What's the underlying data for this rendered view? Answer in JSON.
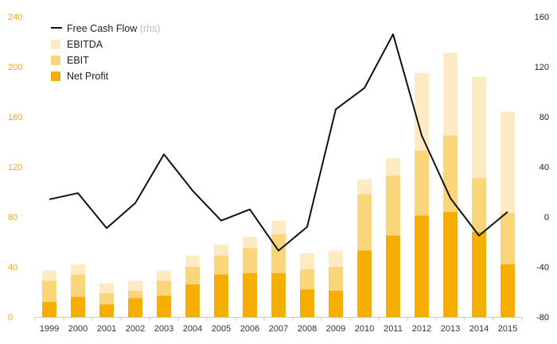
{
  "chart_data": {
    "type": "bar",
    "categories": [
      "1999",
      "2000",
      "2001",
      "2002",
      "2003",
      "2004",
      "2005",
      "2006",
      "2007",
      "2008",
      "2009",
      "2010",
      "2011",
      "2012",
      "2013",
      "2014",
      "2015"
    ],
    "series": [
      {
        "name": "Net Profit",
        "values": [
          12,
          16,
          10,
          15,
          17,
          26,
          34,
          35,
          35,
          22,
          21,
          53,
          65,
          81,
          84,
          68,
          42
        ],
        "color": "#f5ae00"
      },
      {
        "name": "EBIT",
        "values": [
          29,
          34,
          19,
          21,
          29,
          40,
          49,
          55,
          66,
          38,
          40,
          98,
          113,
          133,
          145,
          111,
          83
        ],
        "color": "#fbd57a"
      },
      {
        "name": "EBITDA",
        "values": [
          37,
          42,
          27,
          29,
          37,
          49,
          58,
          64,
          77,
          51,
          53,
          110,
          127,
          195,
          211,
          192,
          164
        ],
        "color": "#feebc3"
      }
    ],
    "line_series": {
      "name": "Free Cash Flow",
      "note": "(rhs)",
      "values": [
        14,
        19,
        -9,
        11,
        50,
        21,
        -3,
        6,
        -27,
        -8,
        86,
        103,
        146,
        65,
        15,
        -15,
        4
      ],
      "color": "#111111"
    },
    "y_left": {
      "ticks": [
        "0",
        "40",
        "80",
        "120",
        "160",
        "200",
        "240"
      ],
      "ylim": [
        0,
        240
      ],
      "color": "#f5a800"
    },
    "y_right": {
      "ticks": [
        "-80",
        "-40",
        "0",
        "40",
        "80",
        "120",
        "160"
      ],
      "ylim": [
        -80,
        160
      ],
      "color": "#222222"
    },
    "legend": {
      "position": "top-left",
      "order": [
        "Free Cash Flow",
        "EBITDA",
        "EBIT",
        "Net Profit"
      ]
    },
    "grid": false,
    "title": "",
    "xlabel": "",
    "ylabel": ""
  }
}
